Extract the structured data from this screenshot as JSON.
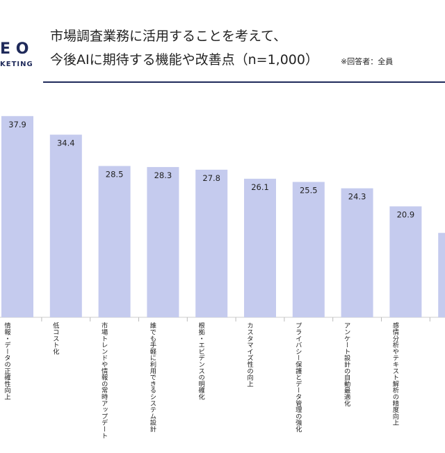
{
  "logo": {
    "line1": "E O",
    "line2": "KETING"
  },
  "chart_data": {
    "type": "bar",
    "title": "市場調査業務に活用することを考えて、",
    "subtitle": "今後AIに期待する機能や改善点（n=1,000）",
    "note": "※回答者：全員",
    "categories": [
      "情報・データの正確性向上",
      "低コスト化",
      "市場トレンドや情報の常時アップデート",
      "誰でも手軽に利用できるシステム設計",
      "根拠・エビデンスの明確化",
      "カスタマイズ性の向上",
      "プライバシー保護とデータ管理の強化",
      "アンケート設計の自動最適化",
      "感情分析やテキスト解析の精度向上",
      null
    ],
    "values": [
      37.9,
      34.4,
      28.5,
      28.3,
      27.8,
      26.1,
      25.5,
      24.3,
      20.9,
      15.9
    ],
    "color": "#c5cbee"
  }
}
